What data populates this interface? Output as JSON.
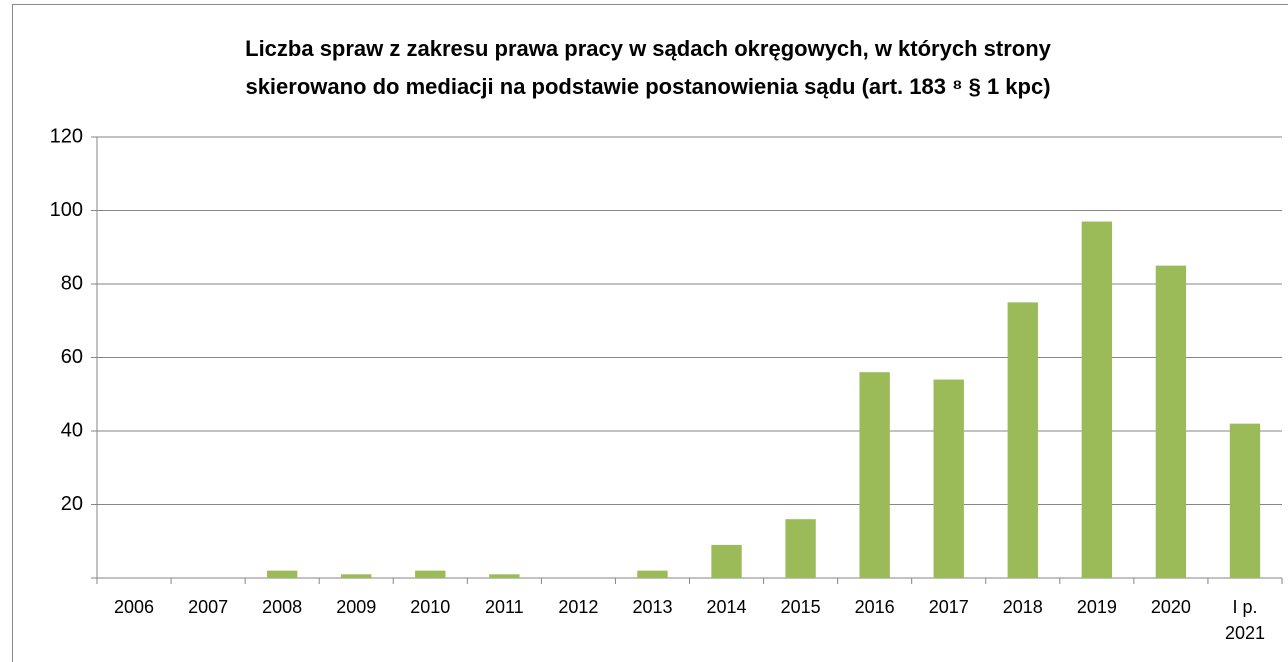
{
  "chart_data": {
    "type": "bar",
    "title": [
      "Liczba spraw z zakresu prawa pracy w sądach okręgowych, w których strony",
      "skierowano do mediacji na podstawie postanowienia sądu (art. 183 ⁸ § 1 kpc)"
    ],
    "categories": [
      "2006",
      "2007",
      "2008",
      "2009",
      "2010",
      "2011",
      "2012",
      "2013",
      "2014",
      "2015",
      "2016",
      "2017",
      "2018",
      "2019",
      "2020",
      "I p. 2021"
    ],
    "values": [
      0,
      0,
      2,
      1,
      2,
      1,
      0,
      2,
      9,
      16,
      56,
      54,
      75,
      97,
      85,
      42
    ],
    "color": "#9bbb59",
    "ylim": [
      0,
      120
    ],
    "yticks": [
      20,
      40,
      60,
      80,
      100,
      120
    ],
    "grid": true
  }
}
